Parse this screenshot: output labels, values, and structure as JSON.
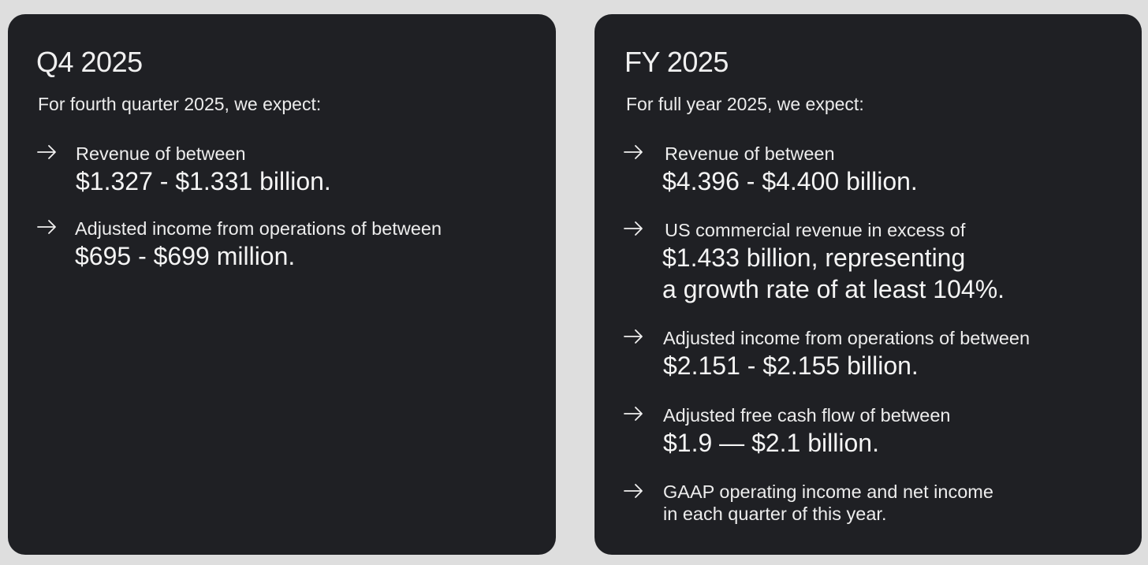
{
  "q4": {
    "title": "Q4 2025",
    "intro": "For fourth quarter 2025, we expect:",
    "items": [
      {
        "label": "Revenue of between",
        "value_lines": [
          "$1.327 - $1.331 billion."
        ]
      },
      {
        "label": "Adjusted income from operations of between",
        "value_lines": [
          "$695 - $699 million."
        ]
      }
    ]
  },
  "fy": {
    "title": "FY 2025",
    "intro": "For full year 2025, we expect:",
    "items": [
      {
        "label": "Revenue of between",
        "value_lines": [
          "$4.396 - $4.400 billion."
        ]
      },
      {
        "label": "US commercial revenue in excess of",
        "value_lines": [
          "$1.433 billion, representing",
          "a growth rate of at least 104%."
        ]
      },
      {
        "label": "Adjusted income from operations of between",
        "value_lines": [
          "$2.151 - $2.155 billion."
        ]
      },
      {
        "label": "Adjusted free cash flow of between",
        "value_lines": [
          "$1.9 — $2.1 billion."
        ]
      },
      {
        "label_lines": [
          "GAAP operating income and net income",
          "in each quarter of this year."
        ]
      }
    ]
  },
  "colors": {
    "background": "#dedede",
    "card": "#1f2024",
    "text": "#f2f2f2"
  },
  "icons": {
    "bullet": "arrow-right-icon"
  }
}
